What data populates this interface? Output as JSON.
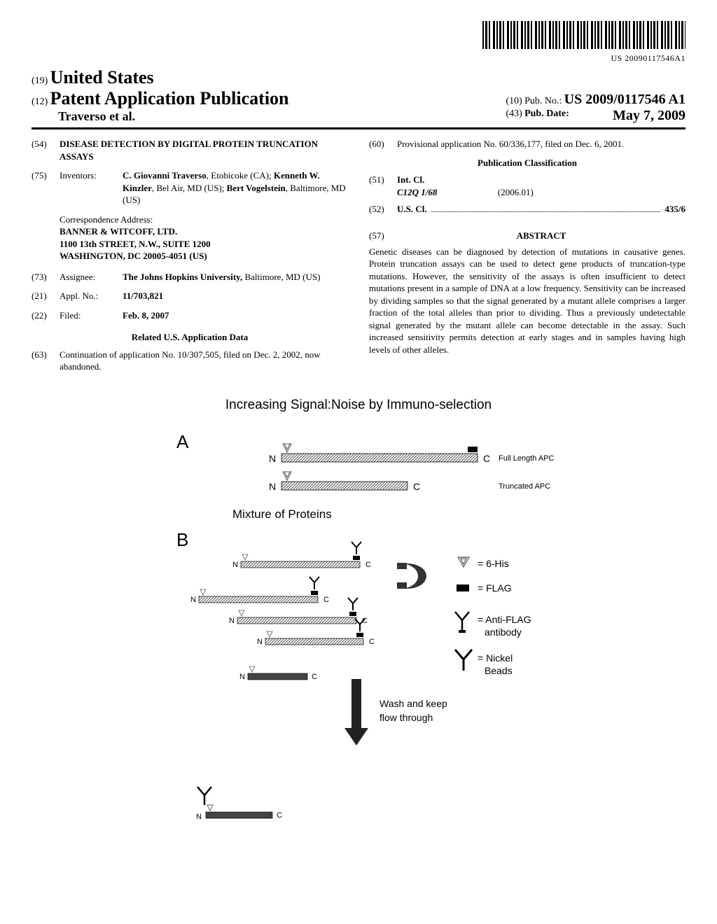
{
  "barcode_text": "US 20090117546A1",
  "header": {
    "country_num": "(19)",
    "country": "United States",
    "pubtype_num": "(12)",
    "pubtype": "Patent Application Publication",
    "authors_line": "Traverso et al.",
    "pubno_num": "(10)",
    "pubno_label": "Pub. No.:",
    "pubno": "US 2009/0117546 A1",
    "pubdate_num": "(43)",
    "pubdate_label": "Pub. Date:",
    "pubdate": "May 7, 2009"
  },
  "left_col": {
    "title_num": "(54)",
    "title": "DISEASE DETECTION BY DIGITAL PROTEIN TRUNCATION ASSAYS",
    "inventors_num": "(75)",
    "inventors_label": "Inventors:",
    "inventors_body_parts": [
      {
        "bold": true,
        "text": "C. Giovanni Traverso"
      },
      {
        "bold": false,
        "text": ", Etobicoke (CA); "
      },
      {
        "bold": true,
        "text": "Kenneth W. Kinzler"
      },
      {
        "bold": false,
        "text": ", Bel Air, MD (US); "
      },
      {
        "bold": true,
        "text": "Bert Vogelstein"
      },
      {
        "bold": false,
        "text": ", Baltimore, MD (US)"
      }
    ],
    "corr_label": "Correspondence Address:",
    "corr_lines": [
      "BANNER & WITCOFF, LTD.",
      "1100 13th STREET, N.W., SUITE 1200",
      "WASHINGTON, DC 20005-4051 (US)"
    ],
    "assignee_num": "(73)",
    "assignee_label": "Assignee:",
    "assignee_body": "The Johns Hopkins University, ",
    "assignee_body2": "Baltimore, MD (US)",
    "applno_num": "(21)",
    "applno_label": "Appl. No.:",
    "applno": "11/703,821",
    "filed_num": "(22)",
    "filed_label": "Filed:",
    "filed": "Feb. 8, 2007",
    "related_header": "Related U.S. Application Data",
    "cont_num": "(63)",
    "cont_body": "Continuation of application No. 10/307,505, filed on Dec. 2, 2002, now abandoned."
  },
  "right_col": {
    "prov_num": "(60)",
    "prov_body": "Provisional application No. 60/336,177, filed on Dec. 6, 2001.",
    "pubclass_header": "Publication Classification",
    "intcl_num": "(51)",
    "intcl_label": "Int. Cl.",
    "intcl_code": "C12Q 1/68",
    "intcl_date": "(2006.01)",
    "uscl_num": "(52)",
    "uscl_label": "U.S. Cl.",
    "uscl_code": "435/6",
    "abstract_num": "(57)",
    "abstract_header": "ABSTRACT",
    "abstract_body": "Genetic diseases can be diagnosed by detection of mutations in causative genes. Protein truncation assays can be used to detect gene products of truncation-type mutations. However, the sensitivity of the assays is often insufficient to detect mutations present in a sample of DNA at a low frequency. Sensitivity can be increased by dividing samples so that the signal generated by a mutant allele comprises a larger fraction of the total alleles than prior to dividing. Thus a previously undetectable signal generated by the mutant allele can become detectable in the assay. Such increased sensitivity permits detection at early stages and in samples having high levels of other alleles."
  },
  "figure": {
    "title": "Increasing Signal:Noise by Immuno-selection",
    "panel_a": "A",
    "panel_b": "B",
    "full_length_label": "Full Length APC",
    "truncated_label": "Truncated APC",
    "mixture_label": "Mixture of Proteins",
    "legend_his": "= 6-His",
    "legend_flag": "= FLAG",
    "legend_antibody1": "= Anti-FLAG",
    "legend_antibody2": "antibody",
    "legend_nickel1": "= Nickel",
    "legend_nickel2": "Beads",
    "wash_line1": "Wash and keep",
    "wash_line2": "flow through",
    "n_label": "N",
    "c_label": "C",
    "colors": {
      "protein_bar": "#7a7a7a",
      "his_triangle": "#666666",
      "flag_rect": "#000000",
      "antibody": "#000000",
      "nickel": "#000000"
    }
  }
}
